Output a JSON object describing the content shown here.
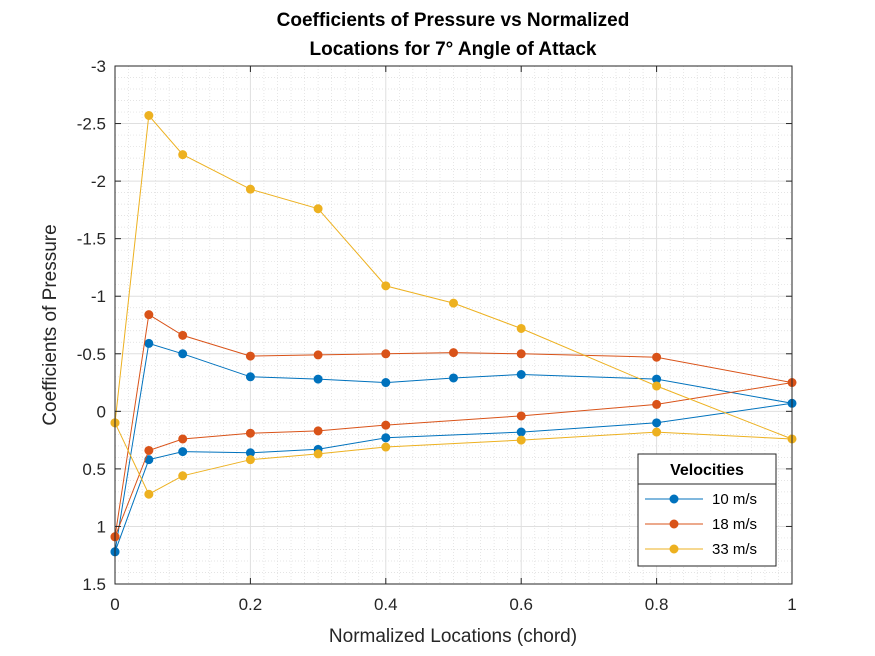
{
  "chart_data": {
    "type": "line",
    "title": [
      "Coefficients of Pressure vs Normalized",
      "Locations for 7° Angle of Attack"
    ],
    "xlabel": "Normalized Locations (chord)",
    "ylabel": "Coefficients of Pressure",
    "xlim": [
      0,
      1
    ],
    "ylim": [
      -3,
      1.5
    ],
    "y_reversed": true,
    "x_ticks": [
      0,
      0.2,
      0.4,
      0.6,
      0.8,
      1
    ],
    "x_tick_labels": [
      "0",
      "0.2",
      "0.4",
      "0.6",
      "0.8",
      "1"
    ],
    "y_ticks": [
      -3,
      -2.5,
      -2,
      -1.5,
      -1,
      -0.5,
      0,
      0.5,
      1,
      1.5
    ],
    "y_tick_labels": [
      "-3",
      "-2.5",
      "-2",
      "-1.5",
      "-1",
      "-0.5",
      "0",
      "0.5",
      "1",
      "1.5"
    ],
    "grid": true,
    "minor_grid": true,
    "legend": {
      "title": "Velocities",
      "placement": "bottom-right"
    },
    "series": [
      {
        "name": "10 m/s",
        "color": "#0072BD",
        "x": [
          0,
          0.05,
          0.1,
          0.2,
          0.3,
          0.4,
          0.5,
          0.6,
          0.8,
          1,
          0.8,
          0.6,
          0.4,
          0.3,
          0.2,
          0.1,
          0.05,
          0
        ],
        "y": [
          1.22,
          -0.59,
          -0.5,
          -0.3,
          -0.28,
          -0.25,
          -0.29,
          -0.32,
          -0.28,
          -0.07,
          0.1,
          0.18,
          0.23,
          0.33,
          0.36,
          0.35,
          0.42,
          1.22
        ]
      },
      {
        "name": "18 m/s",
        "color": "#D95319",
        "x": [
          0,
          0.05,
          0.1,
          0.2,
          0.3,
          0.4,
          0.5,
          0.6,
          0.8,
          1,
          0.8,
          0.6,
          0.4,
          0.3,
          0.2,
          0.1,
          0.05,
          0
        ],
        "y": [
          1.09,
          -0.84,
          -0.66,
          -0.48,
          -0.49,
          -0.5,
          -0.51,
          -0.5,
          -0.47,
          -0.25,
          -0.06,
          0.04,
          0.12,
          0.17,
          0.19,
          0.24,
          0.34,
          1.09
        ]
      },
      {
        "name": "33 m/s",
        "color": "#EDB120",
        "x": [
          0,
          0.05,
          0.1,
          0.2,
          0.3,
          0.4,
          0.5,
          0.6,
          0.8,
          1,
          0.8,
          0.6,
          0.4,
          0.3,
          0.2,
          0.1,
          0.05,
          0
        ],
        "y": [
          0.1,
          -2.57,
          -2.23,
          -1.93,
          -1.76,
          -1.09,
          -0.94,
          -0.72,
          -0.22,
          0.24,
          0.18,
          0.25,
          0.31,
          0.37,
          0.42,
          0.56,
          0.72,
          0.1
        ]
      }
    ]
  }
}
